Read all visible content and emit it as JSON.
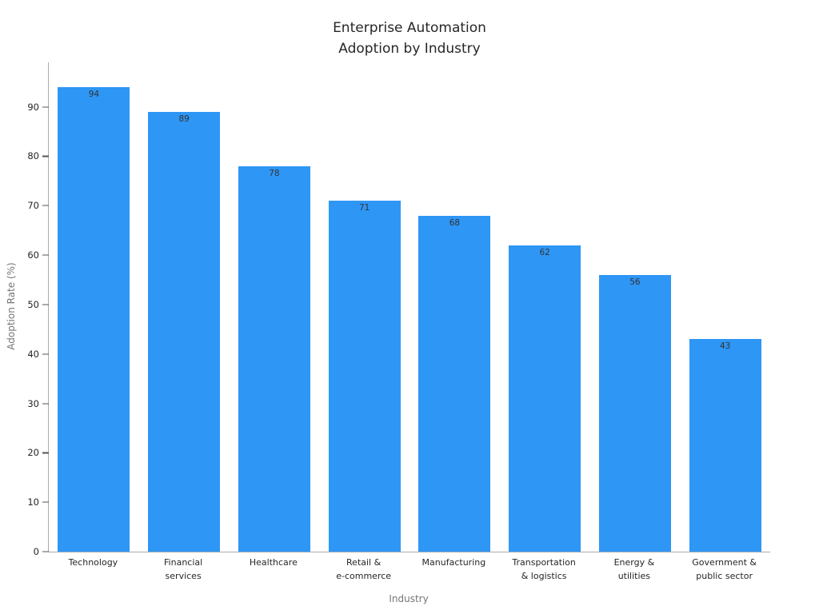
{
  "chart_data": {
    "type": "bar",
    "title": "Enterprise Automation\nAdoption by Industry",
    "xlabel": "Industry",
    "ylabel": "Adoption Rate (%)",
    "categories": [
      "Technology",
      "Financial\nservices",
      "Healthcare",
      "Retail &\ne-commerce",
      "Manufacturing",
      "Transportation\n& logistics",
      "Energy &\nutilities",
      "Government &\npublic sector"
    ],
    "values": [
      94,
      89,
      78,
      71,
      68,
      62,
      56,
      43
    ],
    "yticks": [
      0,
      10,
      20,
      30,
      40,
      50,
      60,
      70,
      80,
      90
    ],
    "ylim": [
      0,
      99
    ],
    "bar_color": "#2E96F5",
    "value_label_color": "#333333",
    "grid": false,
    "legend": "none"
  }
}
